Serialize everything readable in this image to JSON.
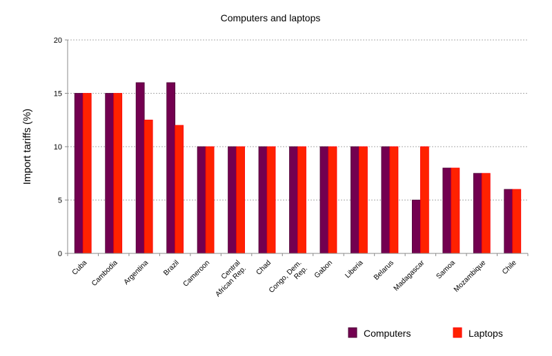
{
  "chart_data": {
    "type": "bar",
    "title": "Computers and laptops",
    "xlabel": "",
    "ylabel": "Import tariffs (%)",
    "ylim": [
      0,
      20
    ],
    "yticks": [
      0,
      5,
      10,
      15,
      20
    ],
    "grid": true,
    "legend_placement": "bottom-right",
    "categories": [
      "Cuba",
      "Cambodia",
      "Argentina",
      "Brazil",
      "Cameroon",
      "Central African Rep.",
      "Chad",
      "Congo, Dem. Rep.",
      "Gabon",
      "Liberia",
      "Belarus",
      "Madagascar",
      "Samoa",
      "Mozambique",
      "Chile"
    ],
    "category_lines": [
      [
        "Cuba"
      ],
      [
        "Cambodia"
      ],
      [
        "Argentina"
      ],
      [
        "Brazil"
      ],
      [
        "Cameroon"
      ],
      [
        "Central",
        "African Rep."
      ],
      [
        "Chad"
      ],
      [
        "Congo, Dem.",
        "Rep."
      ],
      [
        "Gabon"
      ],
      [
        "Liberia"
      ],
      [
        "Belarus"
      ],
      [
        "Madagascar"
      ],
      [
        "Samoa"
      ],
      [
        "Mozambique"
      ],
      [
        "Chile"
      ]
    ],
    "series": [
      {
        "name": "Computers",
        "color": "#730050",
        "values": [
          15,
          15,
          16,
          16,
          10,
          10,
          10,
          10,
          10,
          10,
          10,
          5,
          8,
          7.5,
          6
        ]
      },
      {
        "name": "Laptops",
        "color": "#ff2200",
        "values": [
          15,
          15,
          12.5,
          12,
          10,
          10,
          10,
          10,
          10,
          10,
          10,
          10,
          8,
          7.5,
          6
        ]
      }
    ]
  }
}
